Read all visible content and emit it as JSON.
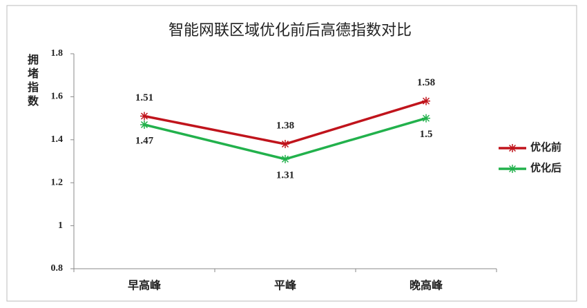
{
  "chart_data": {
    "type": "line",
    "title": "智能网联区域优化前后高德指数对比",
    "y_label": "拥堵指数",
    "categories": [
      "早高峰",
      "平峰",
      "晚高峰"
    ],
    "series": [
      {
        "name": "优化前",
        "color": "#c0141c",
        "values": [
          1.51,
          1.38,
          1.58
        ]
      },
      {
        "name": "优化后",
        "color": "#22b14c",
        "values": [
          1.47,
          1.31,
          1.5
        ]
      }
    ],
    "ylim": [
      0.8,
      1.8
    ],
    "yticks": [
      0.8,
      1,
      1.2,
      1.4,
      1.6,
      1.8
    ],
    "grid": false,
    "legend": "right"
  }
}
